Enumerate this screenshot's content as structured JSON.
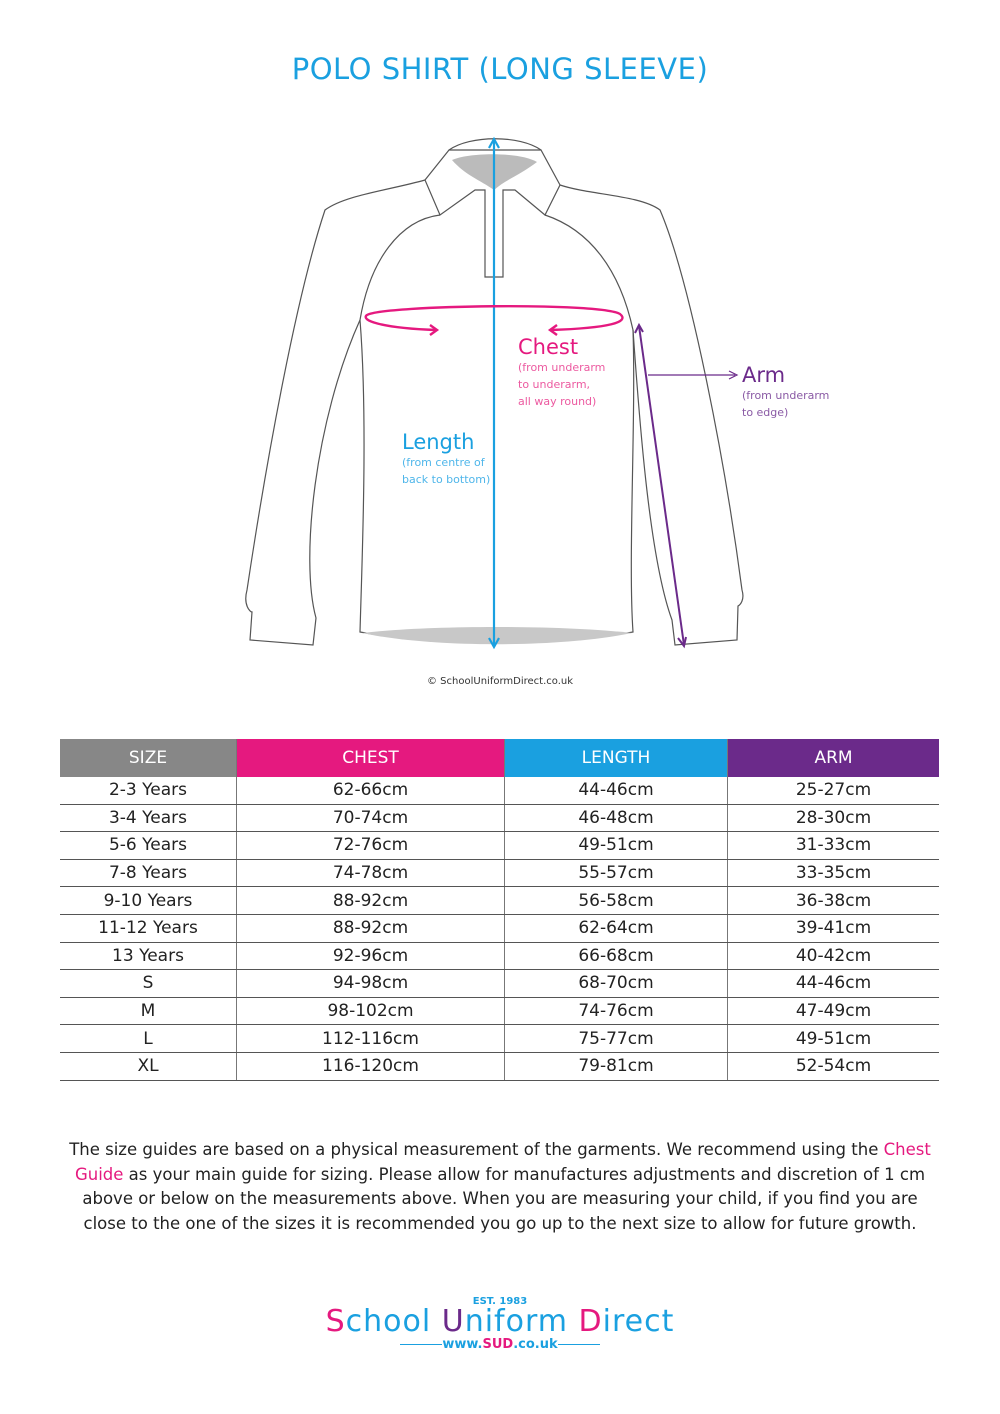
{
  "title": "POLO SHIRT (LONG SLEEVE)",
  "diagram": {
    "chest": {
      "label": "Chest",
      "desc": [
        "(from underarm",
        "to underarm,",
        "all way round)"
      ]
    },
    "length": {
      "label": "Length",
      "desc": [
        "(from centre of",
        "back to bottom)"
      ]
    },
    "arm": {
      "label": "Arm",
      "desc": [
        "(from underarm",
        "to edge)"
      ]
    },
    "copyright": "© SchoolUniformDirect.co.uk"
  },
  "colors": {
    "size": "#878787",
    "chest": "#e5197f",
    "length": "#1aa0e0",
    "arm": "#6b2a8a"
  },
  "table": {
    "headers": [
      "SIZE",
      "CHEST",
      "LENGTH",
      "ARM"
    ],
    "rows": [
      [
        "2-3 Years",
        "62-66cm",
        "44-46cm",
        "25-27cm"
      ],
      [
        "3-4 Years",
        "70-74cm",
        "46-48cm",
        "28-30cm"
      ],
      [
        "5-6 Years",
        "72-76cm",
        "49-51cm",
        "31-33cm"
      ],
      [
        "7-8 Years",
        "74-78cm",
        "55-57cm",
        "33-35cm"
      ],
      [
        "9-10 Years",
        "88-92cm",
        "56-58cm",
        "36-38cm"
      ],
      [
        "11-12 Years",
        "88-92cm",
        "62-64cm",
        "39-41cm"
      ],
      [
        "13 Years",
        "92-96cm",
        "66-68cm",
        "40-42cm"
      ],
      [
        "S",
        "94-98cm",
        "68-70cm",
        "44-46cm"
      ],
      [
        "M",
        "98-102cm",
        "74-76cm",
        "47-49cm"
      ],
      [
        "L",
        "112-116cm",
        "75-77cm",
        "49-51cm"
      ],
      [
        "XL",
        "116-120cm",
        "79-81cm",
        "52-54cm"
      ]
    ]
  },
  "note": {
    "before": "The size guides are based on a physical measurement of the garments. We recommend using the ",
    "highlight": "Chest Guide",
    "after": " as your main guide for sizing. Please allow for manufactures adjustments and discretion of  1 cm above or below on the measurements above. When you are measuring your child, if you find you are close to the one of the sizes it is recommended you go up to the next size to allow for future growth."
  },
  "logo": {
    "est": "EST. 1983",
    "s": "S",
    "chool": "chool ",
    "u": "U",
    "niform": "niform ",
    "d": "D",
    "irect": "irect",
    "www": "www.",
    "sud": "SUD",
    ".couk": ".co.uk"
  }
}
